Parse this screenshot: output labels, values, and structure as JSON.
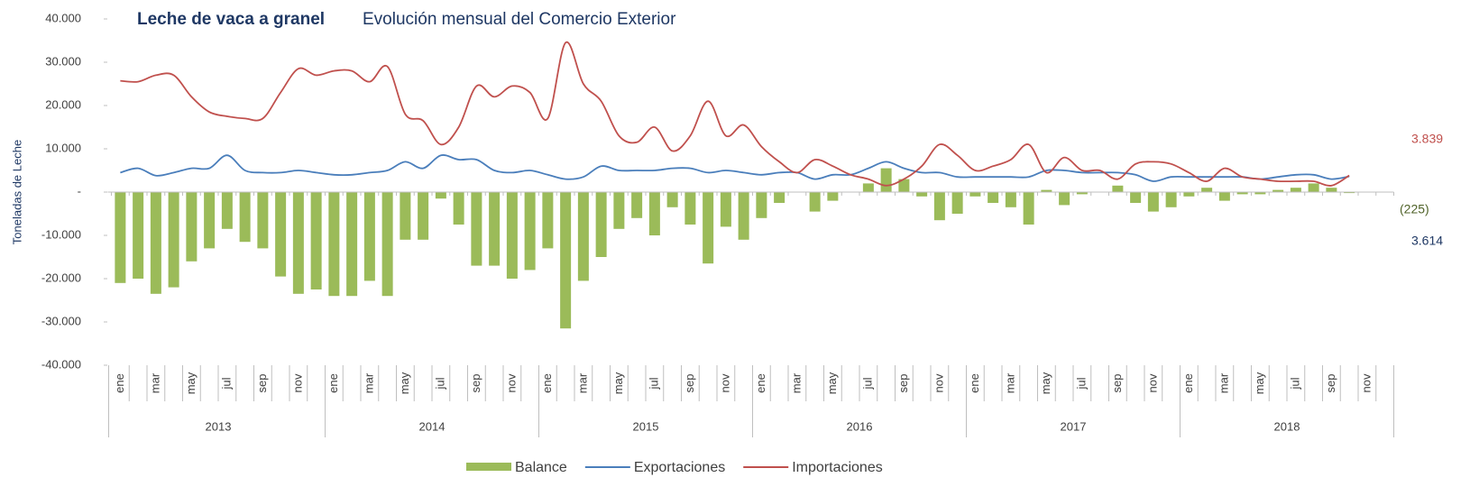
{
  "chart_data": {
    "type": "bar_line",
    "title": "Leche de vaca  a granel",
    "subtitle": "Evolución mensual del Comercio Exterior",
    "y_label": "Toneladas de Leche",
    "ylim": [
      -40000,
      40000
    ],
    "yticks": [
      {
        "value": -40000,
        "label": "-40.000"
      },
      {
        "value": -30000,
        "label": "-30.000"
      },
      {
        "value": -20000,
        "label": "-20.000"
      },
      {
        "value": -10000,
        "label": "-10.000"
      },
      {
        "value": 0,
        "label": "-"
      },
      {
        "value": 10000,
        "label": "10.000"
      },
      {
        "value": 20000,
        "label": "20.000"
      },
      {
        "value": 30000,
        "label": "30.000"
      },
      {
        "value": 40000,
        "label": "40.000"
      }
    ],
    "years": [
      "2013",
      "2014",
      "2015",
      "2016",
      "2017",
      "2018"
    ],
    "categories": [
      "ene",
      null,
      "mar",
      null,
      "may",
      null,
      "jul",
      null,
      "sep",
      null,
      "nov",
      null,
      "ene",
      null,
      "mar",
      null,
      "may",
      null,
      "jul",
      null,
      "sep",
      null,
      "nov",
      null,
      "ene",
      null,
      "mar",
      null,
      "may",
      null,
      "jul",
      null,
      "sep",
      null,
      "nov",
      null,
      "ene",
      null,
      "mar",
      null,
      "may",
      null,
      "jul",
      null,
      "sep",
      null,
      "nov",
      null,
      "ene",
      null,
      "mar",
      null,
      "may",
      null,
      "jul",
      null,
      "sep",
      null,
      "nov",
      null,
      "ene",
      null,
      "mar",
      null,
      "may",
      null,
      "jul",
      null,
      "sep",
      null,
      "nov",
      null
    ],
    "series": [
      {
        "name": "Balance",
        "kind": "bar",
        "color": "#9bbb59",
        "end_label": "(225)",
        "end_label_color": "#4f6228",
        "values": [
          -21000,
          -20000,
          -23500,
          -22000,
          -16000,
          -13000,
          -8500,
          -11500,
          -13000,
          -19500,
          -23500,
          -22500,
          -24000,
          -24000,
          -20500,
          -24000,
          -11000,
          -11000,
          -1500,
          -7500,
          -17000,
          -17000,
          -20000,
          -18000,
          -13000,
          -31500,
          -20500,
          -15000,
          -8500,
          -6000,
          -10000,
          -3500,
          -7500,
          -16500,
          -8000,
          -11000,
          -6000,
          -2500,
          0,
          -4500,
          -2000,
          0,
          2000,
          5500,
          3000,
          -1000,
          -6500,
          -5000,
          -1000,
          -2500,
          -3500,
          -7500,
          500,
          -3000,
          -500,
          0,
          1500,
          -2500,
          -4500,
          -3500,
          -1000,
          1000,
          -2000,
          -500,
          -500,
          500,
          1000,
          2000,
          1000,
          -225,
          null,
          null
        ]
      },
      {
        "name": "Exportaciones",
        "kind": "line",
        "color": "#4a7ebb",
        "end_label": "3.614",
        "end_label_color": "#1f3864",
        "values": [
          4500,
          5500,
          3800,
          4500,
          5500,
          5500,
          8500,
          5000,
          4500,
          4500,
          5000,
          4500,
          4000,
          4000,
          4500,
          5000,
          7000,
          5500,
          8500,
          7500,
          7500,
          5000,
          4500,
          5000,
          4000,
          3000,
          3500,
          6000,
          5000,
          5000,
          5000,
          5500,
          5500,
          4500,
          5000,
          4500,
          4000,
          4500,
          4500,
          3000,
          4000,
          4000,
          5500,
          7000,
          5500,
          4500,
          4500,
          3500,
          3500,
          3500,
          3500,
          3500,
          5000,
          5000,
          4500,
          4500,
          4500,
          4000,
          2500,
          3500,
          3500,
          3500,
          3500,
          3500,
          3000,
          3500,
          4000,
          4000,
          3000,
          3614,
          null,
          null
        ]
      },
      {
        "name": "Importaciones",
        "kind": "line",
        "color": "#c0504d",
        "end_label": "3.839",
        "end_label_color": "#c0504d",
        "values": [
          25700,
          25500,
          27000,
          27000,
          22000,
          18500,
          17500,
          17000,
          17000,
          23000,
          28500,
          27000,
          28000,
          28000,
          25500,
          29000,
          18000,
          16500,
          11000,
          15000,
          24500,
          22000,
          24500,
          23000,
          17000,
          34500,
          25000,
          21000,
          13000,
          11500,
          15000,
          9500,
          13000,
          21000,
          13000,
          15500,
          10500,
          7000,
          4500,
          7500,
          6000,
          4000,
          3000,
          1500,
          3000,
          6000,
          11000,
          8500,
          5000,
          6000,
          7500,
          11000,
          4500,
          8000,
          5000,
          5000,
          3000,
          6500,
          7000,
          6500,
          4500,
          2500,
          5500,
          3500,
          3000,
          2500,
          2500,
          2500,
          1500,
          3839,
          null,
          null
        ]
      }
    ]
  }
}
